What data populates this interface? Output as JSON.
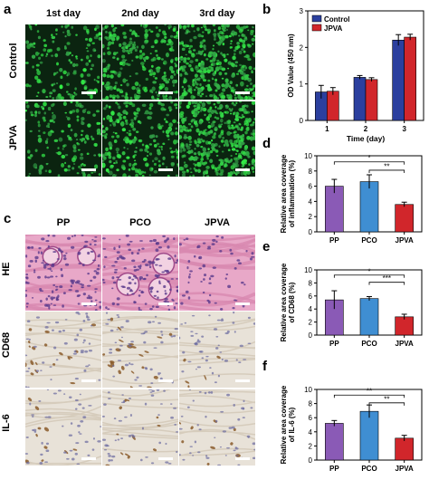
{
  "panels": {
    "a": {
      "label": "a",
      "columns": [
        "1st day",
        "2nd day",
        "3rd day"
      ],
      "rows": [
        "Control",
        "JPVA"
      ]
    },
    "c": {
      "label": "c",
      "columns": [
        "PP",
        "PCO",
        "JPVA"
      ],
      "rows": [
        "HE",
        "CD68",
        "IL-6"
      ]
    }
  },
  "colors": {
    "fluor_bg": "#0b2410",
    "fluor_cell": "#3fd452",
    "he_bg": "#e8a8c8",
    "he_nuclei": "#5a3a8c",
    "ihc_bg": "#e8e2d8",
    "ihc_brown": "#8a5a2a",
    "ihc_blue": "#6a6aa0",
    "control": "#2b3f9e",
    "jpva": "#d1262b",
    "pp": "#8a5ab6",
    "pco": "#3f8ed2"
  },
  "chart_data": [
    {
      "panel": "b",
      "type": "bar",
      "categories": [
        "1",
        "2",
        "3"
      ],
      "series": [
        {
          "name": "Control",
          "values": [
            0.78,
            1.18,
            2.2
          ],
          "errors": [
            0.18,
            0.05,
            0.15
          ]
        },
        {
          "name": "JPVA",
          "values": [
            0.8,
            1.12,
            2.28
          ],
          "errors": [
            0.1,
            0.05,
            0.08
          ]
        }
      ],
      "xlabel": "Time (day)",
      "ylabel": "OD Value (450 nm)",
      "ylim": [
        0,
        3
      ],
      "yticks": [
        0,
        1,
        2,
        3
      ],
      "legend": "top-left"
    },
    {
      "panel": "d",
      "type": "bar",
      "categories": [
        "PP",
        "PCO",
        "JPVA"
      ],
      "values": [
        6.0,
        6.6,
        3.6
      ],
      "errors": [
        0.9,
        0.9,
        0.3
      ],
      "ylabel": "Relative area coverage of inflammation (%)",
      "ylim": [
        0,
        10
      ],
      "yticks": [
        0,
        2,
        4,
        6,
        8,
        10
      ],
      "significance": [
        {
          "from": 0,
          "to": 2,
          "label": "*"
        },
        {
          "from": 1,
          "to": 2,
          "label": "**"
        }
      ]
    },
    {
      "panel": "e",
      "type": "bar",
      "categories": [
        "PP",
        "PCO",
        "JPVA"
      ],
      "values": [
        5.4,
        5.6,
        2.8
      ],
      "errors": [
        1.4,
        0.3,
        0.4
      ],
      "ylabel": "Relative area coverage of CD68 (%)",
      "ylim": [
        0,
        10
      ],
      "yticks": [
        0,
        2,
        4,
        6,
        8,
        10
      ],
      "significance": [
        {
          "from": 0,
          "to": 2,
          "label": "*"
        },
        {
          "from": 1,
          "to": 2,
          "label": "***"
        }
      ]
    },
    {
      "panel": "f",
      "type": "bar",
      "categories": [
        "PP",
        "PCO",
        "JPVA"
      ],
      "values": [
        5.2,
        6.9,
        3.1
      ],
      "errors": [
        0.4,
        0.9,
        0.4
      ],
      "ylabel": "Relative area coverage of IL-6 (%)",
      "ylim": [
        0,
        10
      ],
      "yticks": [
        0,
        2,
        4,
        6,
        8,
        10
      ],
      "significance": [
        {
          "from": 0,
          "to": 2,
          "label": "**"
        },
        {
          "from": 1,
          "to": 2,
          "label": "**"
        }
      ]
    }
  ]
}
